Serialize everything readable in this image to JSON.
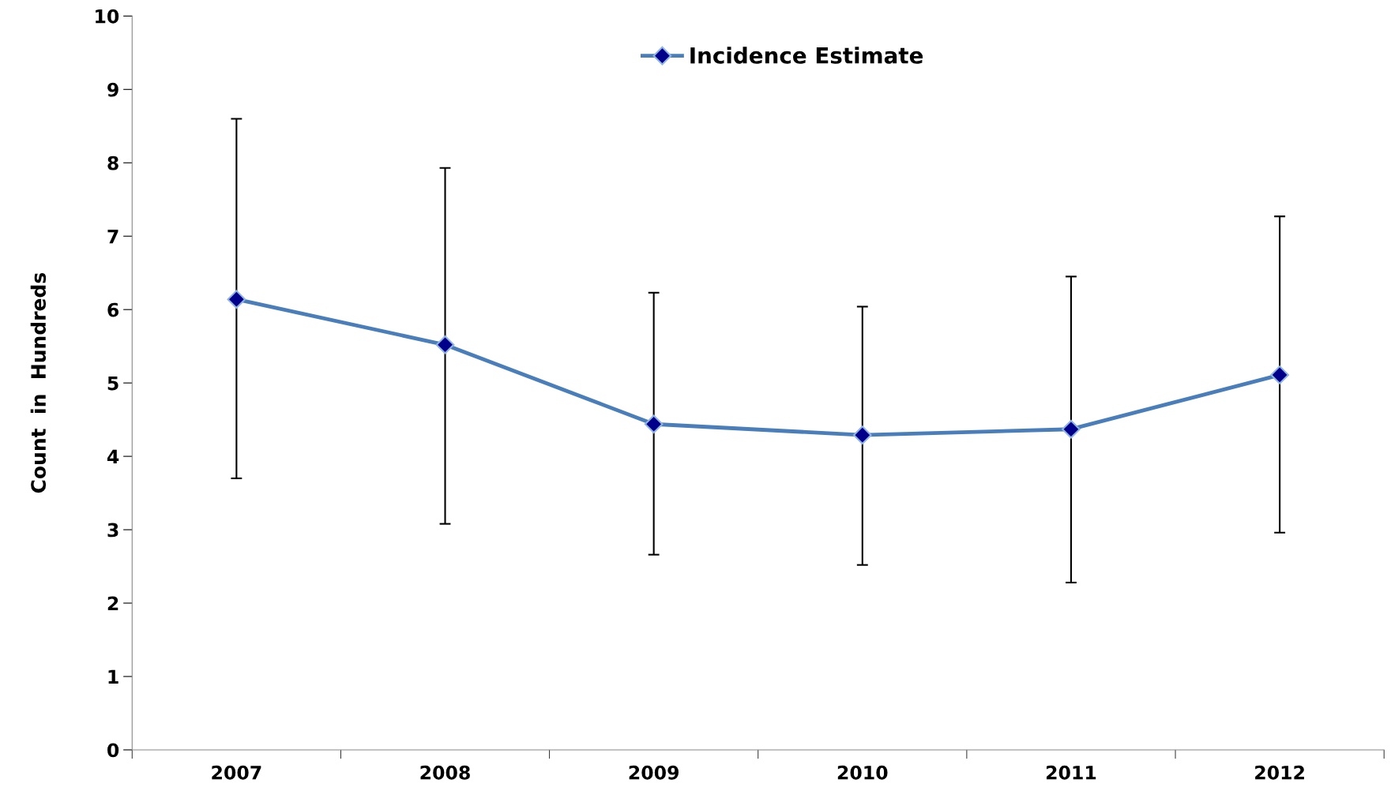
{
  "chart_data": {
    "type": "line",
    "ylabel": "Count  in  Hundreds",
    "categories": [
      "2007",
      "2008",
      "2009",
      "2010",
      "2011",
      "2012"
    ],
    "series": [
      {
        "name": "Incidence Estimate",
        "color": "#4a7ebb",
        "values": [
          6.14,
          5.52,
          4.44,
          4.29,
          4.37,
          5.11
        ],
        "errors": [
          [
            3.7,
            8.6
          ],
          [
            3.08,
            7.93
          ],
          [
            2.66,
            6.23
          ],
          [
            2.52,
            6.04
          ],
          [
            2.28,
            6.45
          ],
          [
            2.96,
            7.27
          ]
        ]
      }
    ],
    "ylim": [
      0,
      10
    ],
    "yticks": [
      0,
      1,
      2,
      3,
      4,
      5,
      6,
      7,
      8,
      9,
      10
    ],
    "marker": "diamond",
    "line_style": "solid",
    "grid": false,
    "legend": "top"
  }
}
